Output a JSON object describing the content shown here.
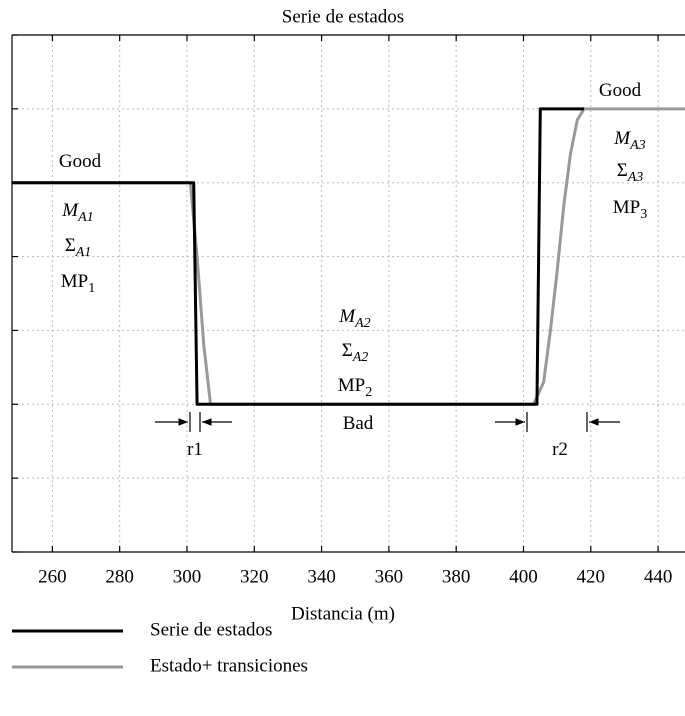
{
  "chart_data": {
    "type": "line",
    "title": "Serie de estados",
    "xlabel": "Distancia (m)",
    "xlim": [
      248,
      448
    ],
    "xticks": [
      260,
      280,
      300,
      320,
      340,
      360,
      380,
      400,
      420,
      440
    ],
    "ylim": [
      0,
      7
    ],
    "yticks": [
      0,
      1,
      2,
      3,
      4,
      5,
      6,
      7
    ],
    "show_ytick_labels": false,
    "grid": true,
    "series": [
      {
        "name": "Serie de estados",
        "color": "#000000",
        "x": [
          248,
          302,
          303,
          404,
          405,
          418
        ],
        "values": [
          5,
          5,
          2,
          2,
          6,
          6
        ]
      },
      {
        "name": "Estado+ transiciones",
        "color": "#999999",
        "x": [
          248,
          301,
          303,
          305,
          307,
          403,
          406,
          408,
          410,
          412,
          414,
          416,
          418,
          448
        ],
        "values": [
          5,
          5,
          4,
          2.8,
          2,
          2,
          2.3,
          3,
          3.8,
          4.7,
          5.4,
          5.85,
          6,
          6
        ]
      }
    ],
    "annotations": [
      {
        "text": "Good"
      },
      {
        "text": "M",
        "sub": "A1"
      },
      {
        "text": "Σ",
        "sub": "A1"
      },
      {
        "text": "MP",
        "sub": "1"
      },
      {
        "text": "M",
        "sub": "A2"
      },
      {
        "text": "Σ",
        "sub": "A2"
      },
      {
        "text": "MP",
        "sub": "2"
      },
      {
        "text": "Bad"
      },
      {
        "text": "r1"
      },
      {
        "text": "r2"
      },
      {
        "text": "Good"
      },
      {
        "text": "M",
        "sub": "A3"
      },
      {
        "text": "Σ",
        "sub": "A3"
      },
      {
        "text": "MP",
        "sub": "3"
      }
    ]
  }
}
